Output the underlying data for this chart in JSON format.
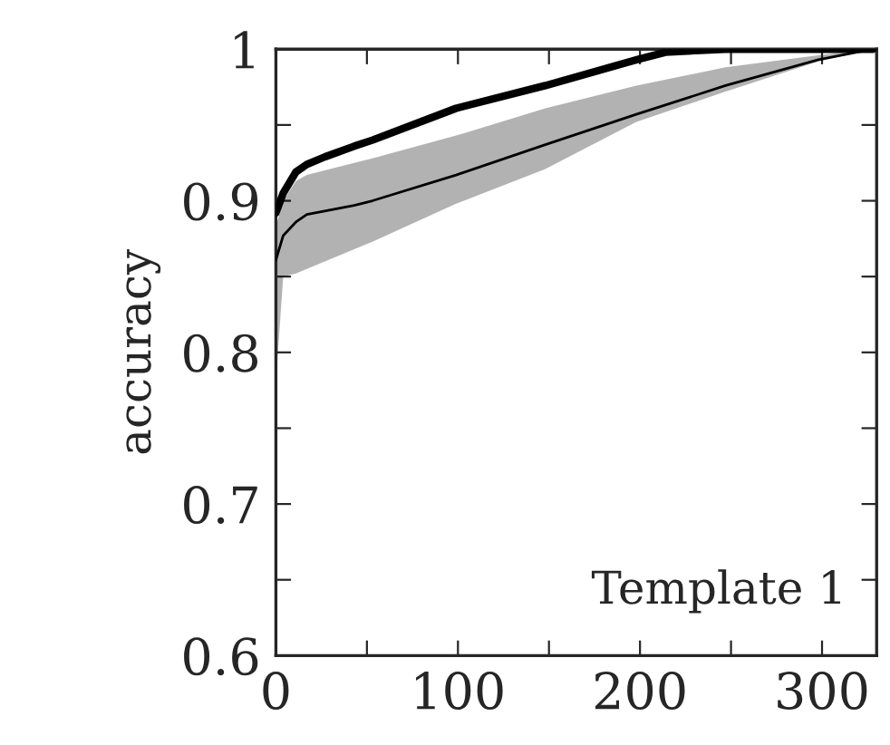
{
  "chart_data": {
    "type": "line",
    "ylabel": "accuracy",
    "annotations": [
      "Template 1"
    ],
    "xlim": [
      0,
      330
    ],
    "ylim": [
      0.6,
      1
    ],
    "xticks": [
      0,
      {
        "value": 50,
        "label": null
      },
      100,
      {
        "value": 150,
        "label": null
      },
      200,
      {
        "value": 250,
        "label": null
      },
      300
    ],
    "yticks": [
      0.6,
      {
        "value": 0.65,
        "label": null
      },
      0.7,
      {
        "value": 0.75,
        "label": null
      },
      0.8,
      {
        "value": 0.85,
        "label": null
      },
      0.9,
      {
        "value": 0.95,
        "label": null
      },
      1
    ],
    "grid": false,
    "legend": false,
    "marker": "none",
    "line_style": "solid",
    "series": [
      {
        "color": "#000000",
        "x": [
          0,
          4,
          11,
          17,
          27,
          43,
          53,
          99,
          148,
          198,
          214,
          247,
          298,
          328
        ],
        "values": [
          0.892,
          0.905,
          0.919,
          0.924,
          0.929,
          0.936,
          0.94,
          0.961,
          0.976,
          0.993,
          0.998,
          1.0,
          1.0,
          1.0
        ]
      },
      {
        "color": "#000000",
        "x": [
          0,
          4,
          11,
          17,
          43,
          53,
          99,
          148,
          198,
          247,
          298,
          328
        ],
        "values": [
          0.861,
          0.877,
          0.886,
          0.891,
          0.897,
          0.9,
          0.917,
          0.937,
          0.957,
          0.976,
          0.993,
          1.0
        ],
        "lower": [
          0.78,
          0.85,
          0.852,
          0.855,
          0.868,
          0.873,
          0.898,
          0.921,
          0.952,
          0.972,
          0.992,
          1.0
        ],
        "upper": [
          0.883,
          0.9,
          0.913,
          0.917,
          0.925,
          0.928,
          0.943,
          0.961,
          0.976,
          0.988,
          0.996,
          1.0
        ]
      }
    ]
  }
}
